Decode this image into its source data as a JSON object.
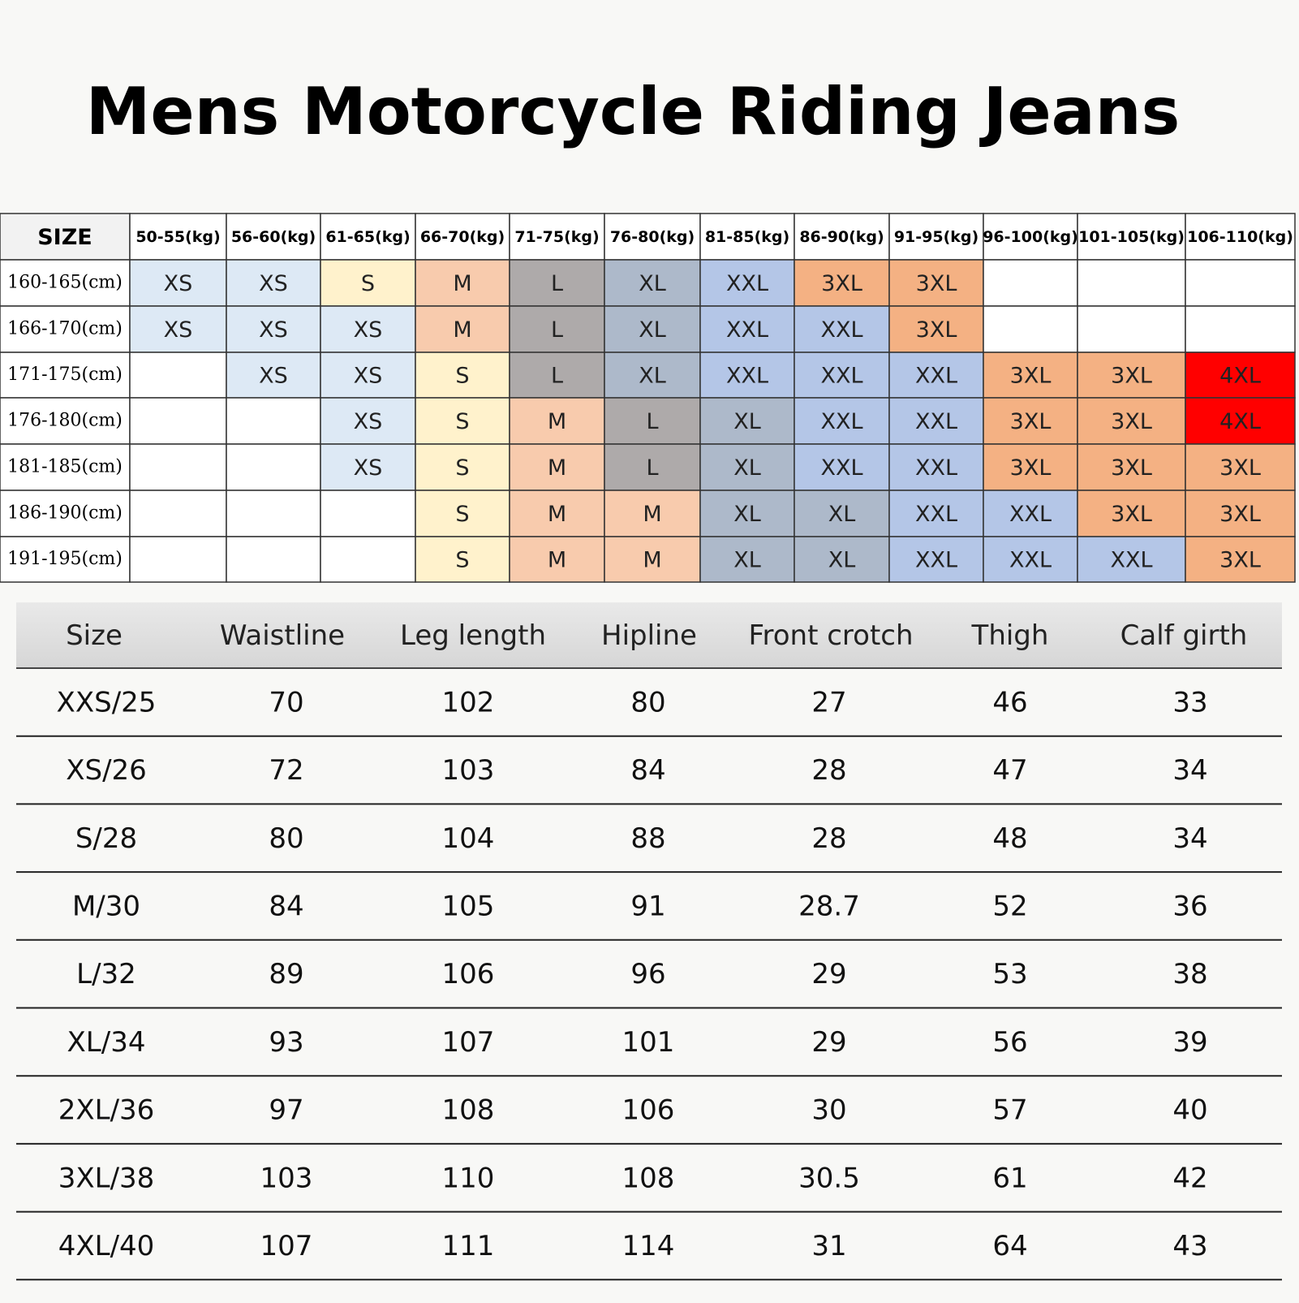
{
  "title": "Mens Motorcycle Riding Jeans",
  "size_grid": {
    "corner": "SIZE",
    "weights": [
      "50-55(kg)",
      "56-60(kg)",
      "61-65(kg)",
      "66-70(kg)",
      "71-75(kg)",
      "76-80(kg)",
      "81-85(kg)",
      "86-90(kg)",
      "91-95(kg)",
      "96-100(kg)",
      "101-105(kg)",
      "106-110(kg)"
    ],
    "rows": [
      {
        "height": "160-165(cm)",
        "cells": [
          "XS",
          "XS",
          "S",
          "M",
          "L",
          "XL",
          "XXL",
          "3XL",
          "3XL",
          null,
          null,
          null
        ]
      },
      {
        "height": "166-170(cm)",
        "cells": [
          "XS",
          "XS",
          "XS",
          "M",
          "L",
          "XL",
          "XXL",
          "XXL",
          "3XL",
          null,
          null,
          null
        ]
      },
      {
        "height": "171-175(cm)",
        "cells": [
          null,
          "XS",
          "XS",
          "S",
          "L",
          "XL",
          "XXL",
          "XXL",
          "XXL",
          "3XL",
          "3XL",
          "4XL"
        ]
      },
      {
        "height": "176-180(cm)",
        "cells": [
          null,
          null,
          "XS",
          "S",
          "M",
          "L",
          "XL",
          "XXL",
          "XXL",
          "3XL",
          "3XL",
          "4XL"
        ]
      },
      {
        "height": "181-185(cm)",
        "cells": [
          null,
          null,
          "XS",
          "S",
          "M",
          "L",
          "XL",
          "XXL",
          "XXL",
          "3XL",
          "3XL",
          "3XL"
        ]
      },
      {
        "height": "186-190(cm)",
        "cells": [
          null,
          null,
          null,
          "S",
          "M",
          "M",
          "XL",
          "XL",
          "XXL",
          "XXL",
          "3XL",
          "3XL"
        ]
      },
      {
        "height": "191-195(cm)",
        "cells": [
          null,
          null,
          null,
          "S",
          "M",
          "M",
          "XL",
          "XL",
          "XXL",
          "XXL",
          "XXL",
          "3XL"
        ]
      }
    ],
    "cell_colors": {
      "XS": "#dde9f5",
      "S": "#fff2cc",
      "M": "#f8cbad",
      "L": "#aeaaaa",
      "XL": "#adb9ca",
      "XXL": "#b4c6e7",
      "3XL": "#f4b183",
      "4XL": "#ff0000"
    }
  },
  "measurements": {
    "headers": [
      "Size",
      "Waistline",
      "Leg length",
      "Hipline",
      "Front crotch",
      "Thigh",
      "Calf girth"
    ],
    "rows": [
      [
        "XXS/25",
        70,
        102,
        80,
        27,
        46,
        33
      ],
      [
        "XS/26",
        72,
        103,
        84,
        28,
        47,
        34
      ],
      [
        "S/28",
        80,
        104,
        88,
        28,
        48,
        34
      ],
      [
        "M/30",
        84,
        105,
        91,
        28.7,
        52,
        36
      ],
      [
        "L/32",
        89,
        106,
        96,
        29,
        53,
        38
      ],
      [
        "XL/34",
        93,
        107,
        101,
        29,
        56,
        39
      ],
      [
        "2XL/36",
        97,
        108,
        106,
        30,
        57,
        40
      ],
      [
        "3XL/38",
        103,
        110,
        108,
        30.5,
        61,
        42
      ],
      [
        "4XL/40",
        107,
        111,
        114,
        31,
        64,
        43
      ]
    ]
  }
}
